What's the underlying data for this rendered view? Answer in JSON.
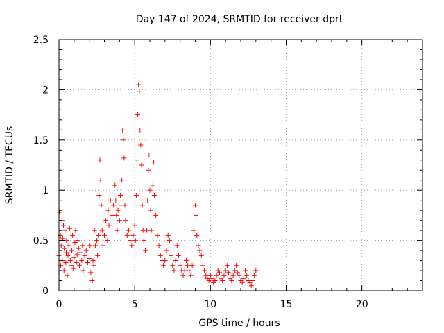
{
  "chart_data": {
    "type": "scatter",
    "title": "Day 147 of 2024, SRMTID for receiver dprt",
    "xlabel": "GPS time / hours",
    "ylabel": "SRMTID / TECUs",
    "xlim": [
      0,
      24
    ],
    "ylim": [
      0,
      2.5
    ],
    "x_ticks": [
      "0",
      "5",
      "10",
      "15",
      "20"
    ],
    "y_ticks": [
      "0",
      "0.5",
      "1",
      "1.5",
      "2",
      "2.5"
    ],
    "grid": true,
    "marker": "+",
    "series_color": "#ff0000",
    "series": [
      {
        "name": "SRMTID",
        "points": [
          [
            0.0,
            0.35
          ],
          [
            0.05,
            0.78
          ],
          [
            0.1,
            0.55
          ],
          [
            0.12,
            0.25
          ],
          [
            0.15,
            0.45
          ],
          [
            0.2,
            0.7
          ],
          [
            0.22,
            0.3
          ],
          [
            0.25,
            0.52
          ],
          [
            0.3,
            0.65
          ],
          [
            0.33,
            0.2
          ],
          [
            0.35,
            0.42
          ],
          [
            0.4,
            0.6
          ],
          [
            0.45,
            0.28
          ],
          [
            0.48,
            0.38
          ],
          [
            0.5,
            0.5
          ],
          [
            0.55,
            0.15
          ],
          [
            0.6,
            0.35
          ],
          [
            0.65,
            0.45
          ],
          [
            0.7,
            0.62
          ],
          [
            0.75,
            0.3
          ],
          [
            0.8,
            0.25
          ],
          [
            0.85,
            0.4
          ],
          [
            0.9,
            0.55
          ],
          [
            0.95,
            0.22
          ],
          [
            1.0,
            0.33
          ],
          [
            1.05,
            0.48
          ],
          [
            1.1,
            0.6
          ],
          [
            1.15,
            0.28
          ],
          [
            1.2,
            0.36
          ],
          [
            1.25,
            0.5
          ],
          [
            1.3,
            0.42
          ],
          [
            1.35,
            0.25
          ],
          [
            1.4,
            0.38
          ],
          [
            1.5,
            0.3
          ],
          [
            1.55,
            0.45
          ],
          [
            1.6,
            0.2
          ],
          [
            1.7,
            0.35
          ],
          [
            1.8,
            0.4
          ],
          [
            1.9,
            0.28
          ],
          [
            2.0,
            0.32
          ],
          [
            2.05,
            0.45
          ],
          [
            2.1,
            0.18
          ],
          [
            2.2,
            0.1
          ],
          [
            2.25,
            0.3
          ],
          [
            2.3,
            0.25
          ],
          [
            2.35,
            0.6
          ],
          [
            2.4,
            0.45
          ],
          [
            2.5,
            0.5
          ],
          [
            2.55,
            0.35
          ],
          [
            2.6,
            0.55
          ],
          [
            2.65,
            0.95
          ],
          [
            2.7,
            1.3
          ],
          [
            2.75,
            1.1
          ],
          [
            2.8,
            0.85
          ],
          [
            2.85,
            0.6
          ],
          [
            2.9,
            0.45
          ],
          [
            3.0,
            0.55
          ],
          [
            3.1,
            0.7
          ],
          [
            3.2,
            0.5
          ],
          [
            3.25,
            0.8
          ],
          [
            3.3,
            0.65
          ],
          [
            3.4,
            0.9
          ],
          [
            3.5,
            0.75
          ],
          [
            3.6,
            0.85
          ],
          [
            3.7,
            1.05
          ],
          [
            3.75,
            0.9
          ],
          [
            3.8,
            0.75
          ],
          [
            3.85,
            0.6
          ],
          [
            3.9,
            0.8
          ],
          [
            4.0,
            0.7
          ],
          [
            4.05,
            0.95
          ],
          [
            4.1,
            0.85
          ],
          [
            4.15,
            1.1
          ],
          [
            4.2,
            1.6
          ],
          [
            4.25,
            1.5
          ],
          [
            4.3,
            1.32
          ],
          [
            4.35,
            0.85
          ],
          [
            4.4,
            0.7
          ],
          [
            4.5,
            0.55
          ],
          [
            4.6,
            0.6
          ],
          [
            4.7,
            0.5
          ],
          [
            4.8,
            0.45
          ],
          [
            4.9,
            0.55
          ],
          [
            5.0,
            0.65
          ],
          [
            5.05,
            0.5
          ],
          [
            5.1,
            0.95
          ],
          [
            5.15,
            1.3
          ],
          [
            5.2,
            1.75
          ],
          [
            5.25,
            2.05
          ],
          [
            5.3,
            1.98
          ],
          [
            5.35,
            1.6
          ],
          [
            5.4,
            1.45
          ],
          [
            5.45,
            1.25
          ],
          [
            5.5,
            0.85
          ],
          [
            5.55,
            0.6
          ],
          [
            5.6,
            0.5
          ],
          [
            5.7,
            0.4
          ],
          [
            5.8,
            0.6
          ],
          [
            5.85,
            0.9
          ],
          [
            5.9,
            1.2
          ],
          [
            5.95,
            1.35
          ],
          [
            6.0,
            1.0
          ],
          [
            6.05,
            0.8
          ],
          [
            6.1,
            0.6
          ],
          [
            6.2,
            1.05
          ],
          [
            6.25,
            1.28
          ],
          [
            6.3,
            0.95
          ],
          [
            6.4,
            0.75
          ],
          [
            6.5,
            0.55
          ],
          [
            6.6,
            0.45
          ],
          [
            6.7,
            0.35
          ],
          [
            6.8,
            0.3
          ],
          [
            6.9,
            0.25
          ],
          [
            7.0,
            0.3
          ],
          [
            7.1,
            0.4
          ],
          [
            7.2,
            0.55
          ],
          [
            7.3,
            0.5
          ],
          [
            7.4,
            0.35
          ],
          [
            7.5,
            0.25
          ],
          [
            7.6,
            0.2
          ],
          [
            7.7,
            0.3
          ],
          [
            7.8,
            0.45
          ],
          [
            7.9,
            0.35
          ],
          [
            8.0,
            0.25
          ],
          [
            8.1,
            0.2
          ],
          [
            8.2,
            0.15
          ],
          [
            8.3,
            0.2
          ],
          [
            8.4,
            0.3
          ],
          [
            8.5,
            0.25
          ],
          [
            8.6,
            0.2
          ],
          [
            8.7,
            0.15
          ],
          [
            8.8,
            0.25
          ],
          [
            8.9,
            0.6
          ],
          [
            9.0,
            0.85
          ],
          [
            9.05,
            0.75
          ],
          [
            9.1,
            0.55
          ],
          [
            9.2,
            0.45
          ],
          [
            9.3,
            0.4
          ],
          [
            9.4,
            0.35
          ],
          [
            9.5,
            0.25
          ],
          [
            9.6,
            0.2
          ],
          [
            9.7,
            0.15
          ],
          [
            9.8,
            0.12
          ],
          [
            9.9,
            0.1
          ],
          [
            10.0,
            0.15
          ],
          [
            10.1,
            0.12
          ],
          [
            10.2,
            0.08
          ],
          [
            10.3,
            0.1
          ],
          [
            10.4,
            0.15
          ],
          [
            10.5,
            0.2
          ],
          [
            10.6,
            0.18
          ],
          [
            10.7,
            0.12
          ],
          [
            10.8,
            0.1
          ],
          [
            10.9,
            0.15
          ],
          [
            11.0,
            0.2
          ],
          [
            11.1,
            0.25
          ],
          [
            11.2,
            0.18
          ],
          [
            11.3,
            0.12
          ],
          [
            11.4,
            0.1
          ],
          [
            11.5,
            0.15
          ],
          [
            11.6,
            0.2
          ],
          [
            11.7,
            0.25
          ],
          [
            11.8,
            0.18
          ],
          [
            11.9,
            0.15
          ],
          [
            12.0,
            0.1
          ],
          [
            12.1,
            0.08
          ],
          [
            12.2,
            0.12
          ],
          [
            12.3,
            0.2
          ],
          [
            12.4,
            0.15
          ],
          [
            12.5,
            0.1
          ],
          [
            12.6,
            0.08
          ],
          [
            12.7,
            0.05
          ],
          [
            12.8,
            0.1
          ],
          [
            12.9,
            0.15
          ],
          [
            13.0,
            0.2
          ]
        ]
      }
    ]
  }
}
